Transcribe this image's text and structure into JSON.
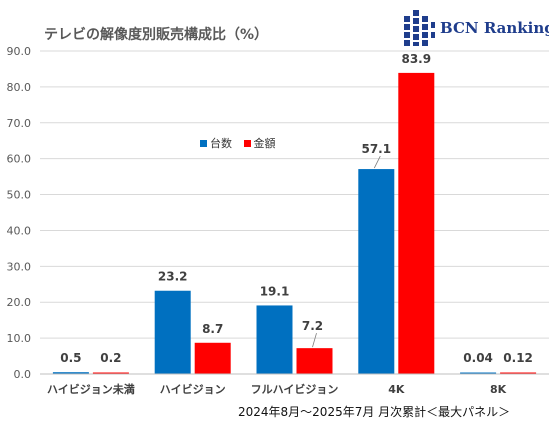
{
  "header": {
    "title": "テレビの解像度別販売構成比（%）"
  },
  "brand": {
    "name": "BCN Ranking",
    "color": "#1f3d8c"
  },
  "footnote": "2024年8月～2025年7月 月次累計＜最大パネル＞",
  "chart_data": {
    "type": "bar",
    "title": "テレビの解像度別販売構成比（%）",
    "categories": [
      "ハイビジョン未満",
      "ハイビジョン",
      "フルハイビジョン",
      "4K",
      "8K"
    ],
    "series": [
      {
        "name": "台数",
        "color": "#0070c0",
        "values": [
          0.5,
          23.2,
          19.1,
          57.1,
          0.04
        ],
        "labels": [
          "0.5",
          "23.2",
          "19.1",
          "57.1",
          "0.04"
        ]
      },
      {
        "name": "金額",
        "color": "#ff0000",
        "values": [
          0.2,
          8.7,
          7.2,
          83.9,
          0.12
        ],
        "labels": [
          "0.2",
          "8.7",
          "7.2",
          "83.9",
          "0.12"
        ]
      }
    ],
    "ylim": [
      0,
      90
    ],
    "yticks": [
      "0.0",
      "10.0",
      "20.0",
      "30.0",
      "40.0",
      "50.0",
      "60.0",
      "70.0",
      "80.0",
      "90.0"
    ],
    "xlabel": "",
    "ylabel": "",
    "grid": true,
    "legend": "center"
  }
}
